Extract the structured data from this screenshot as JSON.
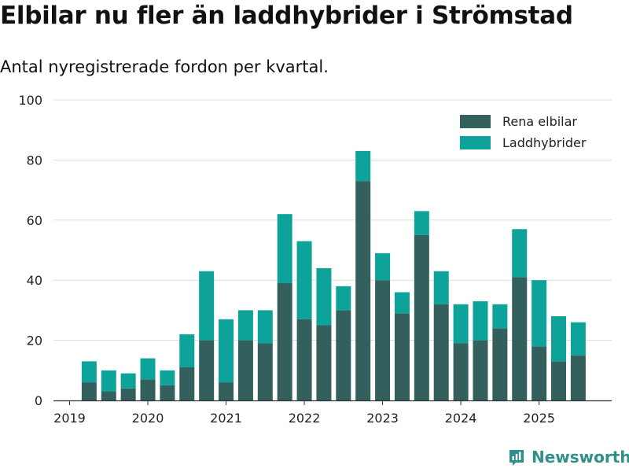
{
  "title": "Elbilar nu fler än laddhybrider i Strömstad",
  "subtitle": "Antal nyregistrerade fordon per kvartal.",
  "brand": {
    "name": "Newsworthy",
    "icon": "newsworthy-logo-icon"
  },
  "colors": {
    "elbilar": "#33605c",
    "laddhybrider": "#0ea39a",
    "grid": "#dddddd",
    "axis": "#333333",
    "text": "#222222"
  },
  "chart_data": {
    "type": "bar",
    "stacked": true,
    "title": "Elbilar nu fler än laddhybrider i Strömstad",
    "subtitle": "Antal nyregistrerade fordon per kvartal.",
    "xlabel": "",
    "ylabel": "",
    "ylim": [
      0,
      100
    ],
    "yticks": [
      0,
      20,
      40,
      60,
      80,
      100
    ],
    "x_tick_labels": [
      "2019",
      "2020",
      "2021",
      "2022",
      "2023",
      "2024",
      "2025"
    ],
    "x_tick_quarters": [
      0,
      4,
      8,
      12,
      16,
      20,
      24
    ],
    "first_bar_quarter": 1,
    "categories": [
      "2019 K2",
      "2019 K3",
      "2019 K4",
      "2020 K1",
      "2020 K2",
      "2020 K3",
      "2020 K4",
      "2021 K1",
      "2021 K2",
      "2021 K3",
      "2021 K4",
      "2022 K1",
      "2022 K2",
      "2022 K3",
      "2022 K4",
      "2023 K1",
      "2023 K2",
      "2023 K3",
      "2023 K4",
      "2024 K1",
      "2024 K2",
      "2024 K3",
      "2024 K4",
      "2025 K1",
      "2025 K2",
      "2025 K3"
    ],
    "series": [
      {
        "name": "Rena elbilar",
        "values": [
          6,
          3,
          4,
          7,
          5,
          11,
          20,
          6,
          20,
          19,
          39,
          27,
          25,
          30,
          73,
          40,
          29,
          55,
          32,
          19,
          20,
          24,
          41,
          18,
          13,
          15
        ]
      },
      {
        "name": "Laddhybrider",
        "values": [
          7,
          7,
          5,
          7,
          5,
          11,
          23,
          21,
          10,
          11,
          23,
          26,
          19,
          8,
          10,
          9,
          7,
          8,
          11,
          13,
          13,
          8,
          16,
          22,
          15,
          11
        ]
      }
    ],
    "grid": true,
    "legend_position": "top-right"
  }
}
